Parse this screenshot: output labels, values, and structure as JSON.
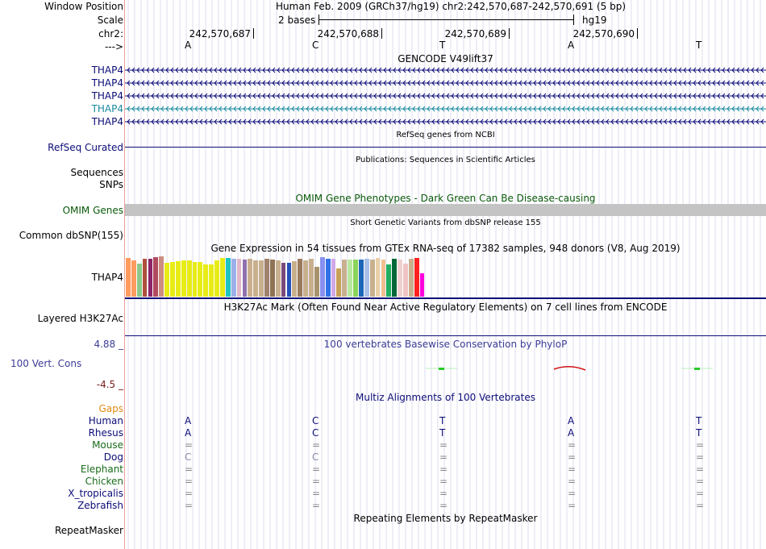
{
  "header": {
    "window_position_label": "Window Position",
    "window_position_text": "Human Feb. 2009 (GRCh37/hg19)   chr2:242,570,687-242,570,691 (5 bp)",
    "scale_label": "Scale",
    "scale_text": "2 bases",
    "scale_assembly": "hg19",
    "chrom_label": "chr2:",
    "strand_label": "--->"
  },
  "ruler": {
    "ticks": [
      "242,570,687",
      "242,570,688",
      "242,570,689",
      "242,570,690"
    ],
    "bases": [
      "A",
      "C",
      "T",
      "A",
      "T"
    ]
  },
  "gencode": {
    "title": "GENCODE V49lift37",
    "genes": [
      {
        "name": "THAP4",
        "color": "#0c0c78"
      },
      {
        "name": "THAP4",
        "color": "#0c0c78"
      },
      {
        "name": "THAP4",
        "color": "#0c0c78"
      },
      {
        "name": "THAP4",
        "color": "#188a9e"
      },
      {
        "name": "THAP4",
        "color": "#0c0c78"
      }
    ]
  },
  "refseq": {
    "title": "RefSeq genes from NCBI",
    "label": "RefSeq Curated"
  },
  "publications": {
    "title": "Publications: Sequences in Scientific Articles",
    "label_sequences": "Sequences",
    "label_snps": "SNPs"
  },
  "omim": {
    "title": "OMIM Gene Phenotypes - Dark Green Can Be Disease-causing",
    "label": "OMIM Genes"
  },
  "dbsnp": {
    "title": "Short Genetic Variants from dbSNP release 155",
    "label": "Common dbSNP(155)"
  },
  "gtex": {
    "title": "Gene Expression in 54 tissues from GTEx RNA-seq of 17382 samples, 948 donors (V8, Aug 2019)",
    "label": "THAP4",
    "values": [
      50,
      47,
      43,
      49,
      49,
      51,
      52,
      44,
      45,
      46,
      47,
      47,
      45,
      45,
      42,
      42,
      47,
      50,
      50,
      49,
      49,
      48,
      49,
      47,
      47,
      49,
      48,
      47,
      44,
      44,
      46,
      49,
      47,
      49,
      38,
      51,
      49,
      49,
      36,
      48,
      48,
      48,
      48,
      49,
      48,
      50,
      48,
      42,
      49,
      48,
      43,
      49,
      50,
      30
    ],
    "colors": [
      "#ff9b5e",
      "#ff9b5e",
      "#8bc98a",
      "#b0503a",
      "#8e2567",
      "#b04a5e",
      "#cc8e80",
      "#e8ec16",
      "#e8ec16",
      "#e8ec16",
      "#e8ec16",
      "#e8ec16",
      "#e8ec16",
      "#e8ec16",
      "#e8ec16",
      "#e8ec16",
      "#e8ec16",
      "#e8ec16",
      "#1ec4c4",
      "#9bb0e8",
      "#e0b8c8",
      "#9070b0",
      "#c8b08e",
      "#c8b08e",
      "#c8b08e",
      "#a0826a",
      "#8e7354",
      "#c8b08e",
      "#7a4a7a",
      "#2450b8",
      "#c8b08e",
      "#9c7a5e",
      "#c8b08e",
      "#c8b08e",
      "#a8926e",
      "#8890f0",
      "#3070e8",
      "#d0a8e8",
      "#c8a058",
      "#c8b08e",
      "#b8e8a0",
      "#8ad45a",
      "#1c66b8",
      "#a8c0e8",
      "#c8b08e",
      "#e8d0a8",
      "#f0c090",
      "#20b060",
      "#006838",
      "#eed0d0",
      "#f0c4c4",
      "#c8b08e",
      "#ff2020",
      "#ff00dd"
    ]
  },
  "h3k27ac": {
    "title": "H3K27Ac Mark (Often Found Near Active Regulatory Elements) on 7 cell lines from ENCODE",
    "label": "Layered H3K27Ac"
  },
  "phylop": {
    "title": "100 vertebrates Basewise Conservation by PhyloP",
    "label": "100 Vert. Cons",
    "max_label": "4.88 _",
    "min_label": "-4.5 _"
  },
  "multiz": {
    "title": "Multiz Alignments of 100 Vertebrates",
    "gaps_label": "Gaps",
    "species": [
      {
        "name": "Human",
        "color": "#0c0c78",
        "bases": [
          "A",
          "C",
          "T",
          "A",
          "T"
        ],
        "base_color": "#0c0c78"
      },
      {
        "name": "Rhesus",
        "color": "#0c0c78",
        "bases": [
          "A",
          "C",
          "T",
          "A",
          "T"
        ],
        "base_color": "#0c0c78"
      },
      {
        "name": "Mouse",
        "color": "#1a6b1a",
        "bases": [
          "=",
          "=",
          "=",
          "=",
          "="
        ],
        "base_color": "#888888"
      },
      {
        "name": "Dog",
        "color": "#0c0c78",
        "bases": [
          "C",
          "C",
          "=",
          "=",
          "="
        ],
        "base_color": "#888888"
      },
      {
        "name": "Elephant",
        "color": "#1a6b1a",
        "bases": [
          "=",
          "=",
          "=",
          "=",
          "="
        ],
        "base_color": "#888888"
      },
      {
        "name": "Chicken",
        "color": "#1a6b1a",
        "bases": [
          "=",
          "=",
          "=",
          "=",
          "="
        ],
        "base_color": "#888888"
      },
      {
        "name": "X_tropicalis",
        "color": "#0c0c78",
        "bases": [
          "=",
          "=",
          "=",
          "=",
          "="
        ],
        "base_color": "#888888"
      },
      {
        "name": "Zebrafish",
        "color": "#0c0c78",
        "bases": [
          "=",
          "=",
          "=",
          "=",
          "="
        ],
        "base_color": "#888888"
      }
    ]
  },
  "repeatmasker": {
    "title": "Repeating Elements by RepeatMasker",
    "label": "RepeatMasker"
  },
  "colors": {
    "navy": "#0c0c78",
    "omim_green": "#0a5a0a",
    "gaps_orange": "#e08a14",
    "phylop_blue": "#3c3c96",
    "phylop_min": "#7a1a1a",
    "grid": "#c8c8e8"
  }
}
